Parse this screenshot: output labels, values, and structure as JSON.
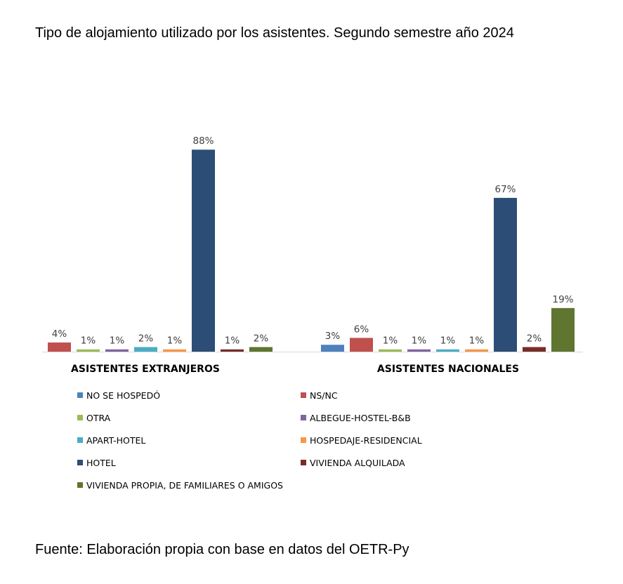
{
  "chart_data": {
    "type": "bar",
    "title": "Tipo de alojamiento utilizado por los asistentes. Segundo semestre año 2024",
    "source": "Fuente: Elaboración propia con base en datos del OETR-Py",
    "unit": "%",
    "groups": [
      "ASISTENTES EXTRANJEROS",
      "ASISTENTES NACIONALES"
    ],
    "series": [
      {
        "name": "NO SE HOSPEDÓ",
        "color": "#4f81bd",
        "values": [
          null,
          3
        ]
      },
      {
        "name": "NS/NC",
        "color": "#c0504d",
        "values": [
          4,
          6
        ]
      },
      {
        "name": "OTRA",
        "color": "#9bbb59",
        "values": [
          1,
          1
        ]
      },
      {
        "name": "ALBEGUE-HOSTEL-B&B",
        "color": "#8064a2",
        "values": [
          1,
          1
        ]
      },
      {
        "name": "APART-HOTEL",
        "color": "#4bacc6",
        "values": [
          2,
          1
        ]
      },
      {
        "name": "HOSPEDAJE-RESIDENCIAL",
        "color": "#f79646",
        "values": [
          1,
          1
        ]
      },
      {
        "name": "HOTEL",
        "color": "#2c4d75",
        "values": [
          88,
          67
        ]
      },
      {
        "name": "VIVIENDA ALQUILADA",
        "color": "#772c2a",
        "values": [
          1,
          2
        ]
      },
      {
        "name": "VIVIENDA PROPIA, DE FAMILIARES O AMIGOS",
        "color": "#5f7530",
        "values": [
          2,
          19
        ]
      }
    ],
    "ylim": [
      0,
      100
    ],
    "grid": false,
    "legend_position": "bottom"
  }
}
